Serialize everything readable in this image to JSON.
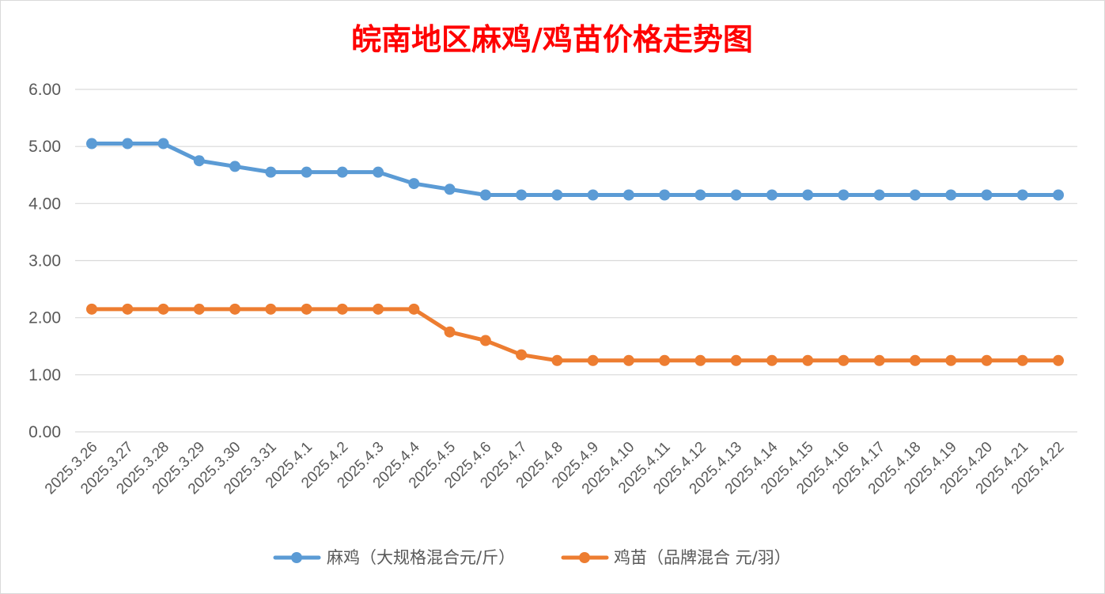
{
  "chart_data": {
    "type": "line",
    "title": "皖南地区麻鸡/鸡苗价格走势图",
    "xlabel": "",
    "ylabel": "",
    "ylim": [
      0,
      6
    ],
    "yticks": [
      "0.00",
      "1.00",
      "2.00",
      "3.00",
      "4.00",
      "5.00",
      "6.00"
    ],
    "grid": true,
    "legend_position": "bottom",
    "categories": [
      "2025.3.26",
      "2025.3.27",
      "2025.3.28",
      "2025.3.29",
      "2025.3.30",
      "2025.3.31",
      "2025.4.1",
      "2025.4.2",
      "2025.4.3",
      "2025.4.4",
      "2025.4.5",
      "2025.4.6",
      "2025.4.7",
      "2025.4.8",
      "2025.4.9",
      "2025.4.10",
      "2025.4.11",
      "2025.4.12",
      "2025.4.13",
      "2025.4.14",
      "2025.4.15",
      "2025.4.16",
      "2025.4.17",
      "2025.4.18",
      "2025.4.19",
      "2025.4.20",
      "2025.4.21",
      "2025.4.22"
    ],
    "series": [
      {
        "name": "麻鸡（大规格混合元/斤）",
        "color": "#5b9bd5",
        "values": [
          5.05,
          5.05,
          5.05,
          4.75,
          4.65,
          4.55,
          4.55,
          4.55,
          4.55,
          4.35,
          4.25,
          4.15,
          4.15,
          4.15,
          4.15,
          4.15,
          4.15,
          4.15,
          4.15,
          4.15,
          4.15,
          4.15,
          4.15,
          4.15,
          4.15,
          4.15,
          4.15,
          4.15
        ]
      },
      {
        "name": "鸡苗（品牌混合 元/羽）",
        "color": "#ed7d31",
        "values": [
          2.15,
          2.15,
          2.15,
          2.15,
          2.15,
          2.15,
          2.15,
          2.15,
          2.15,
          2.15,
          1.75,
          1.6,
          1.35,
          1.25,
          1.25,
          1.25,
          1.25,
          1.25,
          1.25,
          1.25,
          1.25,
          1.25,
          1.25,
          1.25,
          1.25,
          1.25,
          1.25,
          1.25
        ]
      }
    ]
  }
}
